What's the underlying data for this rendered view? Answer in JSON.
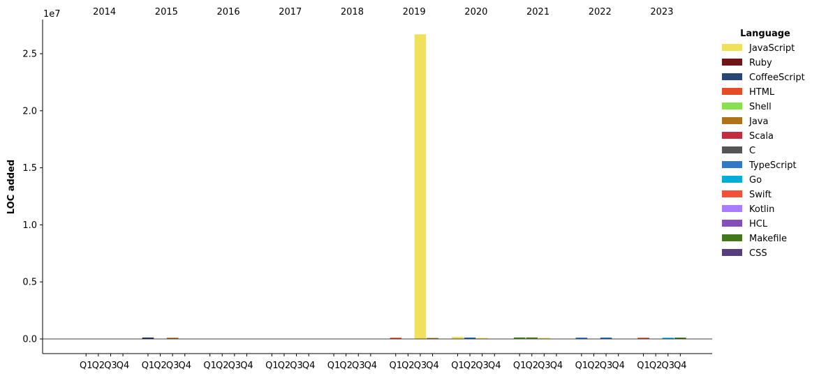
{
  "chart_data": {
    "type": "bar",
    "stacked": true,
    "ylabel": "LOC added",
    "y_multiplier": "1e7",
    "ylim": [
      -1300000,
      28100000
    ],
    "y_ticks": [
      0,
      5000000,
      10000000,
      15000000,
      20000000,
      25000000
    ],
    "y_tick_labels": [
      "0.0",
      "0.5",
      "1.0",
      "1.5",
      "2.0",
      "2.5"
    ],
    "legend_title": "Language",
    "legend_position": "right",
    "years": [
      "2014",
      "2015",
      "2016",
      "2017",
      "2018",
      "2019",
      "2020",
      "2021",
      "2022",
      "2023"
    ],
    "quarter_labels": [
      "Q1",
      "Q2",
      "Q3",
      "Q4"
    ],
    "languages": [
      {
        "name": "JavaScript",
        "color": "#f1e05a"
      },
      {
        "name": "Ruby",
        "color": "#701516"
      },
      {
        "name": "CoffeeScript",
        "color": "#244776"
      },
      {
        "name": "HTML",
        "color": "#e34c26"
      },
      {
        "name": "Shell",
        "color": "#89e051"
      },
      {
        "name": "Java",
        "color": "#b07219"
      },
      {
        "name": "Scala",
        "color": "#c22d40"
      },
      {
        "name": "C",
        "color": "#555555"
      },
      {
        "name": "TypeScript",
        "color": "#3178c6"
      },
      {
        "name": "Go",
        "color": "#00add8"
      },
      {
        "name": "Swift",
        "color": "#f05138"
      },
      {
        "name": "Kotlin",
        "color": "#a97bff"
      },
      {
        "name": "HCL",
        "color": "#844fba"
      },
      {
        "name": "Makefile",
        "color": "#427819"
      },
      {
        "name": "CSS",
        "color": "#563d7c"
      }
    ],
    "bars": [
      {
        "year": "2014",
        "quarter": "Q1",
        "values": {}
      },
      {
        "year": "2014",
        "quarter": "Q2",
        "values": {}
      },
      {
        "year": "2014",
        "quarter": "Q3",
        "values": {}
      },
      {
        "year": "2014",
        "quarter": "Q4",
        "values": {}
      },
      {
        "year": "2015",
        "quarter": "Q1",
        "values": {
          "Ruby": 40000,
          "CoffeeScript": 20000
        }
      },
      {
        "year": "2015",
        "quarter": "Q2",
        "values": {}
      },
      {
        "year": "2015",
        "quarter": "Q3",
        "values": {
          "Ruby": 20000,
          "Java": 30000
        }
      },
      {
        "year": "2015",
        "quarter": "Q4",
        "values": {}
      },
      {
        "year": "2016",
        "quarter": "Q1",
        "values": {}
      },
      {
        "year": "2016",
        "quarter": "Q2",
        "values": {}
      },
      {
        "year": "2016",
        "quarter": "Q3",
        "values": {}
      },
      {
        "year": "2016",
        "quarter": "Q4",
        "values": {}
      },
      {
        "year": "2017",
        "quarter": "Q1",
        "values": {}
      },
      {
        "year": "2017",
        "quarter": "Q2",
        "values": {}
      },
      {
        "year": "2017",
        "quarter": "Q3",
        "values": {}
      },
      {
        "year": "2017",
        "quarter": "Q4",
        "values": {}
      },
      {
        "year": "2018",
        "quarter": "Q1",
        "values": {}
      },
      {
        "year": "2018",
        "quarter": "Q2",
        "values": {}
      },
      {
        "year": "2018",
        "quarter": "Q3",
        "values": {}
      },
      {
        "year": "2018",
        "quarter": "Q4",
        "values": {}
      },
      {
        "year": "2019",
        "quarter": "Q1",
        "values": {
          "HTML": 40000,
          "Ruby": 20000
        }
      },
      {
        "year": "2019",
        "quarter": "Q2",
        "values": {}
      },
      {
        "year": "2019",
        "quarter": "Q3",
        "values": {
          "JavaScript": 26700000
        }
      },
      {
        "year": "2019",
        "quarter": "Q4",
        "values": {
          "Java": 40000
        }
      },
      {
        "year": "2020",
        "quarter": "Q1",
        "values": {
          "JavaScript": 180000
        }
      },
      {
        "year": "2020",
        "quarter": "Q2",
        "values": {
          "CoffeeScript": 40000,
          "TypeScript": 30000
        }
      },
      {
        "year": "2020",
        "quarter": "Q3",
        "values": {
          "JavaScript": 50000
        }
      },
      {
        "year": "2020",
        "quarter": "Q4",
        "values": {}
      },
      {
        "year": "2021",
        "quarter": "Q1",
        "values": {
          "Makefile": 60000,
          "Shell": 40000
        }
      },
      {
        "year": "2021",
        "quarter": "Q2",
        "values": {
          "Makefile": 50000,
          "Shell": 40000
        }
      },
      {
        "year": "2021",
        "quarter": "Q3",
        "values": {
          "JavaScript": 100000
        }
      },
      {
        "year": "2021",
        "quarter": "Q4",
        "values": {}
      },
      {
        "year": "2022",
        "quarter": "Q1",
        "values": {
          "TypeScript": 30000,
          "CoffeeScript": 30000
        }
      },
      {
        "year": "2022",
        "quarter": "Q2",
        "values": {}
      },
      {
        "year": "2022",
        "quarter": "Q3",
        "values": {
          "TypeScript": 100000,
          "CoffeeScript": 20000
        }
      },
      {
        "year": "2022",
        "quarter": "Q4",
        "values": {}
      },
      {
        "year": "2023",
        "quarter": "Q1",
        "values": {
          "HTML": 30000,
          "Ruby": 20000
        }
      },
      {
        "year": "2023",
        "quarter": "Q2",
        "values": {}
      },
      {
        "year": "2023",
        "quarter": "Q3",
        "values": {
          "Go": 30000,
          "TypeScript": 20000
        }
      },
      {
        "year": "2023",
        "quarter": "Q4",
        "values": {
          "Go": 30000,
          "Makefile": 20000
        }
      }
    ]
  }
}
